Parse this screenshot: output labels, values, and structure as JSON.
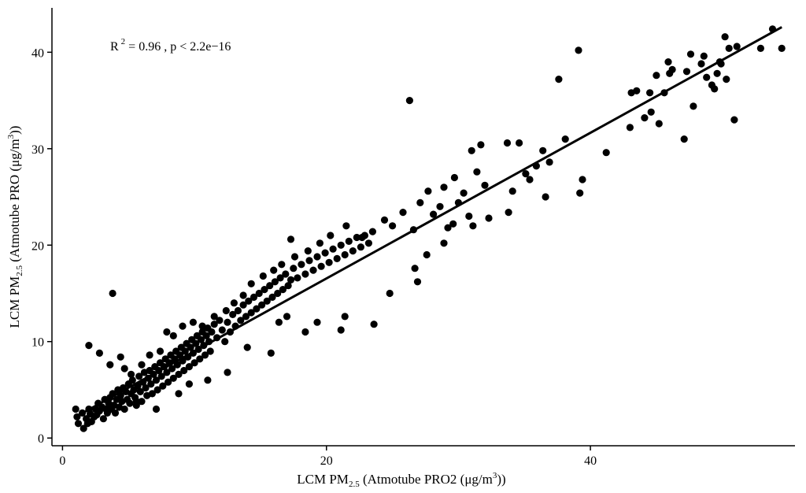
{
  "chart_data": {
    "type": "scatter",
    "xlabel": {
      "main": "LCM PM",
      "sub": "2.5",
      "rest": " (Atmotube PRO2 (μg/m",
      "sup": "3",
      "end": "))"
    },
    "ylabel": {
      "main": "LCM PM",
      "sub": "2.5",
      "rest": " (Atmotube PRO (μg/m",
      "sup": "3",
      "end": "))"
    },
    "annotation": {
      "r": "R",
      "sup": "2",
      "rest": " = 0.96  , p < 2.2e−16"
    },
    "xlim": [
      -0.8,
      55.5
    ],
    "ylim": [
      -0.8,
      44.6
    ],
    "x_ticks": [
      0,
      20,
      40
    ],
    "x_tick_labels": [
      "0",
      "20",
      "40"
    ],
    "y_ticks": [
      0,
      10,
      20,
      30,
      40
    ],
    "y_tick_labels": [
      "0",
      "10",
      "20",
      "30",
      "40"
    ],
    "grid": false,
    "fit_line": {
      "x0": 1.0,
      "y0": 2.2,
      "x1": 54.5,
      "y1": 42.6
    },
    "points": [
      [
        1.0,
        3.0
      ],
      [
        1.1,
        2.2
      ],
      [
        1.2,
        1.5
      ],
      [
        1.5,
        2.6
      ],
      [
        1.6,
        1.0
      ],
      [
        1.8,
        2.0
      ],
      [
        1.9,
        1.5
      ],
      [
        2.0,
        3.0
      ],
      [
        2.1,
        2.5
      ],
      [
        2.2,
        1.7
      ],
      [
        2.4,
        2.2
      ],
      [
        2.5,
        3.0
      ],
      [
        2.6,
        2.4
      ],
      [
        2.7,
        3.6
      ],
      [
        2.8,
        2.8
      ],
      [
        3.0,
        3.2
      ],
      [
        3.1,
        2.0
      ],
      [
        3.2,
        4.0
      ],
      [
        3.3,
        3.0
      ],
      [
        3.4,
        2.6
      ],
      [
        3.5,
        3.6
      ],
      [
        3.6,
        4.2
      ],
      [
        3.7,
        3.0
      ],
      [
        3.8,
        4.6
      ],
      [
        3.9,
        3.4
      ],
      [
        4.0,
        2.6
      ],
      [
        4.1,
        4.0
      ],
      [
        4.2,
        5.0
      ],
      [
        4.3,
        3.2
      ],
      [
        4.4,
        4.4
      ],
      [
        4.5,
        3.8
      ],
      [
        4.6,
        5.2
      ],
      [
        4.7,
        3.0
      ],
      [
        4.8,
        4.8
      ],
      [
        4.9,
        4.0
      ],
      [
        5.0,
        5.6
      ],
      [
        5.1,
        3.6
      ],
      [
        5.2,
        4.6
      ],
      [
        5.3,
        6.0
      ],
      [
        5.4,
        5.0
      ],
      [
        5.5,
        4.2
      ],
      [
        5.6,
        3.4
      ],
      [
        5.7,
        5.4
      ],
      [
        5.8,
        6.4
      ],
      [
        5.9,
        4.8
      ],
      [
        6.0,
        3.8
      ],
      [
        6.1,
        5.8
      ],
      [
        6.2,
        6.8
      ],
      [
        6.3,
        5.2
      ],
      [
        6.4,
        4.4
      ],
      [
        6.5,
        6.2
      ],
      [
        6.6,
        7.0
      ],
      [
        6.7,
        5.6
      ],
      [
        6.8,
        4.6
      ],
      [
        6.9,
        6.6
      ],
      [
        7.0,
        7.4
      ],
      [
        7.1,
        6.0
      ],
      [
        7.2,
        5.0
      ],
      [
        7.3,
        7.0
      ],
      [
        7.4,
        7.8
      ],
      [
        7.5,
        6.4
      ],
      [
        7.6,
        5.4
      ],
      [
        7.7,
        7.4
      ],
      [
        7.8,
        8.2
      ],
      [
        7.9,
        6.8
      ],
      [
        8.0,
        5.8
      ],
      [
        8.1,
        7.8
      ],
      [
        8.2,
        8.6
      ],
      [
        8.3,
        7.2
      ],
      [
        8.4,
        6.2
      ],
      [
        8.5,
        8.2
      ],
      [
        8.6,
        9.0
      ],
      [
        8.7,
        7.6
      ],
      [
        8.8,
        6.6
      ],
      [
        8.9,
        8.6
      ],
      [
        9.0,
        9.4
      ],
      [
        9.1,
        8.0
      ],
      [
        9.2,
        7.0
      ],
      [
        9.3,
        9.0
      ],
      [
        9.4,
        9.8
      ],
      [
        9.5,
        8.4
      ],
      [
        9.6,
        7.4
      ],
      [
        9.7,
        9.4
      ],
      [
        9.8,
        10.2
      ],
      [
        9.9,
        8.8
      ],
      [
        10.0,
        7.8
      ],
      [
        10.1,
        9.8
      ],
      [
        10.2,
        10.6
      ],
      [
        10.3,
        9.2
      ],
      [
        10.4,
        8.2
      ],
      [
        10.5,
        10.2
      ],
      [
        10.6,
        11.0
      ],
      [
        10.7,
        9.6
      ],
      [
        10.8,
        8.6
      ],
      [
        10.9,
        10.6
      ],
      [
        11.0,
        11.4
      ],
      [
        11.1,
        10.0
      ],
      [
        11.2,
        9.0
      ],
      [
        11.3,
        11.0
      ],
      [
        11.5,
        11.8
      ],
      [
        11.7,
        10.4
      ],
      [
        11.9,
        12.2
      ],
      [
        12.1,
        11.2
      ],
      [
        12.3,
        10.0
      ],
      [
        12.5,
        12.0
      ],
      [
        12.7,
        11.0
      ],
      [
        12.9,
        12.8
      ],
      [
        13.1,
        11.6
      ],
      [
        13.3,
        13.2
      ],
      [
        13.5,
        12.2
      ],
      [
        13.7,
        13.8
      ],
      [
        13.9,
        12.6
      ],
      [
        14.1,
        14.2
      ],
      [
        14.3,
        13.0
      ],
      [
        14.5,
        14.6
      ],
      [
        14.7,
        13.4
      ],
      [
        14.9,
        15.0
      ],
      [
        15.1,
        13.8
      ],
      [
        15.3,
        15.4
      ],
      [
        15.5,
        14.2
      ],
      [
        15.7,
        15.8
      ],
      [
        15.9,
        14.6
      ],
      [
        16.1,
        16.2
      ],
      [
        16.3,
        15.0
      ],
      [
        16.5,
        16.6
      ],
      [
        16.7,
        15.4
      ],
      [
        16.9,
        17.0
      ],
      [
        17.1,
        15.8
      ],
      [
        17.3,
        16.4
      ],
      [
        17.5,
        17.6
      ],
      [
        17.8,
        16.6
      ],
      [
        18.1,
        18.0
      ],
      [
        18.4,
        17.0
      ],
      [
        18.7,
        18.4
      ],
      [
        19.0,
        17.4
      ],
      [
        19.3,
        18.8
      ],
      [
        19.6,
        17.8
      ],
      [
        19.9,
        19.2
      ],
      [
        20.2,
        18.2
      ],
      [
        20.5,
        19.6
      ],
      [
        20.8,
        18.6
      ],
      [
        21.1,
        20.0
      ],
      [
        21.4,
        19.0
      ],
      [
        21.7,
        20.4
      ],
      [
        22.0,
        19.4
      ],
      [
        22.3,
        20.8
      ],
      [
        22.6,
        19.8
      ],
      [
        22.9,
        21.0
      ],
      [
        23.2,
        20.2
      ],
      [
        23.5,
        21.4
      ],
      [
        3.8,
        15.0
      ],
      [
        17.3,
        20.6
      ],
      [
        26.3,
        35.0
      ],
      [
        39.1,
        40.2
      ],
      [
        37.6,
        37.2
      ],
      [
        50.9,
        33.0
      ],
      [
        47.1,
        31.0
      ],
      [
        41.2,
        29.6
      ],
      [
        36.6,
        25.0
      ],
      [
        39.2,
        25.4
      ],
      [
        39.4,
        26.8
      ],
      [
        35.1,
        27.4
      ],
      [
        33.8,
        23.4
      ],
      [
        32.3,
        22.8
      ],
      [
        31.1,
        22.0
      ],
      [
        29.6,
        22.2
      ],
      [
        28.9,
        20.2
      ],
      [
        27.6,
        19.0
      ],
      [
        26.9,
        16.2
      ],
      [
        26.7,
        17.6
      ],
      [
        24.8,
        15.0
      ],
      [
        23.6,
        11.8
      ],
      [
        21.4,
        12.6
      ],
      [
        21.1,
        11.2
      ],
      [
        19.3,
        12.0
      ],
      [
        18.4,
        11.0
      ],
      [
        17.0,
        12.6
      ],
      [
        16.4,
        12.0
      ],
      [
        15.8,
        8.8
      ],
      [
        14.0,
        9.4
      ],
      [
        12.5,
        6.8
      ],
      [
        11.0,
        6.0
      ],
      [
        9.6,
        5.6
      ],
      [
        8.8,
        4.6
      ],
      [
        7.1,
        3.0
      ],
      [
        5.6,
        3.8
      ],
      [
        2.0,
        9.6
      ],
      [
        2.8,
        8.8
      ],
      [
        3.6,
        7.6
      ],
      [
        4.4,
        8.4
      ],
      [
        4.7,
        7.2
      ],
      [
        5.2,
        6.6
      ],
      [
        6.0,
        7.6
      ],
      [
        6.6,
        8.6
      ],
      [
        7.4,
        9.0
      ],
      [
        7.9,
        11.0
      ],
      [
        8.4,
        10.6
      ],
      [
        9.1,
        11.6
      ],
      [
        9.9,
        12.0
      ],
      [
        10.6,
        11.6
      ],
      [
        11.5,
        12.6
      ],
      [
        12.4,
        13.2
      ],
      [
        13.0,
        14.0
      ],
      [
        13.7,
        14.8
      ],
      [
        14.3,
        16.0
      ],
      [
        15.2,
        16.8
      ],
      [
        16.0,
        17.4
      ],
      [
        16.6,
        18.0
      ],
      [
        17.6,
        18.8
      ],
      [
        18.6,
        19.4
      ],
      [
        19.5,
        20.2
      ],
      [
        20.3,
        21.0
      ],
      [
        21.5,
        22.0
      ],
      [
        22.7,
        20.8
      ],
      [
        24.4,
        22.6
      ],
      [
        25.0,
        22.0
      ],
      [
        25.8,
        23.4
      ],
      [
        26.6,
        21.6
      ],
      [
        27.1,
        24.4
      ],
      [
        27.7,
        25.6
      ],
      [
        28.1,
        23.2
      ],
      [
        28.6,
        24.0
      ],
      [
        28.9,
        26.0
      ],
      [
        29.2,
        21.8
      ],
      [
        29.7,
        27.0
      ],
      [
        30.0,
        24.4
      ],
      [
        30.4,
        25.4
      ],
      [
        30.8,
        23.0
      ],
      [
        31.0,
        29.8
      ],
      [
        31.4,
        27.6
      ],
      [
        31.7,
        30.4
      ],
      [
        32.0,
        26.2
      ],
      [
        33.7,
        30.6
      ],
      [
        34.1,
        25.6
      ],
      [
        34.6,
        30.6
      ],
      [
        35.4,
        26.8
      ],
      [
        35.9,
        28.2
      ],
      [
        36.4,
        29.8
      ],
      [
        36.9,
        28.6
      ],
      [
        38.1,
        31.0
      ],
      [
        43.0,
        32.2
      ],
      [
        43.1,
        35.8
      ],
      [
        43.5,
        36.0
      ],
      [
        44.1,
        33.2
      ],
      [
        44.5,
        35.8
      ],
      [
        44.6,
        33.8
      ],
      [
        45.0,
        37.6
      ],
      [
        45.2,
        32.6
      ],
      [
        45.6,
        35.8
      ],
      [
        45.9,
        39.0
      ],
      [
        46.0,
        37.8
      ],
      [
        46.2,
        38.2
      ],
      [
        47.3,
        38.0
      ],
      [
        47.8,
        34.4
      ],
      [
        48.4,
        38.8
      ],
      [
        48.8,
        37.4
      ],
      [
        49.2,
        36.6
      ],
      [
        49.8,
        39.0
      ],
      [
        50.2,
        41.6
      ],
      [
        50.5,
        40.4
      ],
      [
        51.1,
        40.6
      ],
      [
        52.9,
        40.4
      ],
      [
        54.5,
        40.4
      ],
      [
        53.8,
        42.4
      ],
      [
        49.6,
        37.8
      ],
      [
        49.9,
        38.8
      ],
      [
        50.3,
        37.2
      ],
      [
        49.4,
        36.2
      ],
      [
        48.6,
        39.6
      ],
      [
        47.6,
        39.8
      ]
    ]
  }
}
